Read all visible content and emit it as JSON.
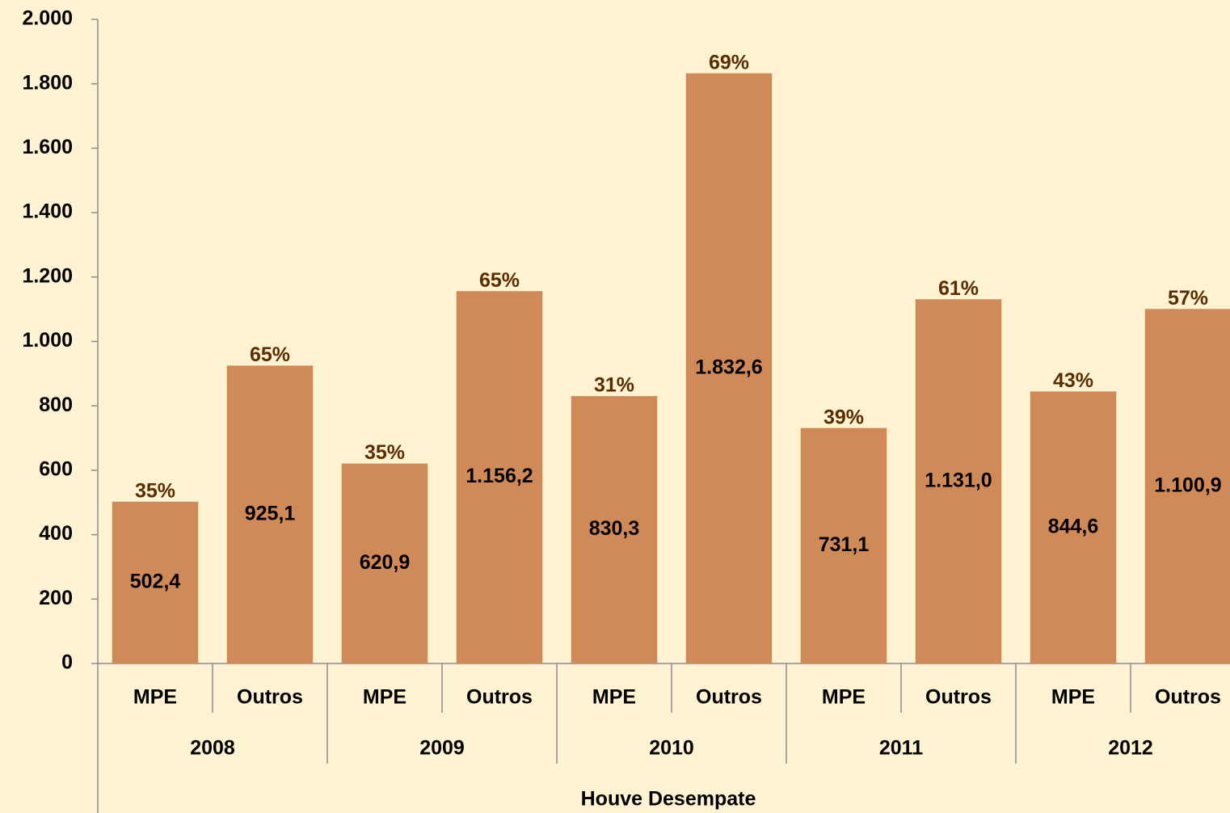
{
  "chart_data": {
    "type": "bar",
    "x_label": "Houve Desempate",
    "categories": [
      "MPE",
      "Outros",
      "MPE",
      "Outros",
      "MPE",
      "Outros",
      "MPE",
      "Outros",
      "MPE",
      "Outros"
    ],
    "groups": [
      "2008",
      "2009",
      "2010",
      "2011",
      "2012"
    ],
    "values": [
      502.4,
      925.1,
      620.9,
      1156.2,
      830.3,
      1832.6,
      731.1,
      1131.0,
      844.6,
      1100.9
    ],
    "value_labels": [
      "502,4",
      "925,1",
      "620,9",
      "1.156,2",
      "830,3",
      "1.832,6",
      "731,1",
      "1.131,0",
      "844,6",
      "1.100,9"
    ],
    "shares": [
      35,
      65,
      35,
      65,
      31,
      69,
      39,
      61,
      43,
      57
    ],
    "share_labels": [
      "35%",
      "65%",
      "35%",
      "65%",
      "31%",
      "69%",
      "39%",
      "61%",
      "43%",
      "57%"
    ],
    "color": "#d08a58",
    "ylim": [
      0,
      2000
    ],
    "yticks": [
      0,
      200,
      400,
      600,
      800,
      {
        "value": 1000,
        "label": "1.000"
      },
      {
        "value": 1200,
        "label": "1.200"
      },
      {
        "value": 1400,
        "label": "1.400"
      },
      {
        "value": 1600,
        "label": "1.600"
      },
      {
        "value": 1800,
        "label": "1.800"
      },
      {
        "value": 2000,
        "label": "2.000"
      }
    ],
    "grid": false
  }
}
